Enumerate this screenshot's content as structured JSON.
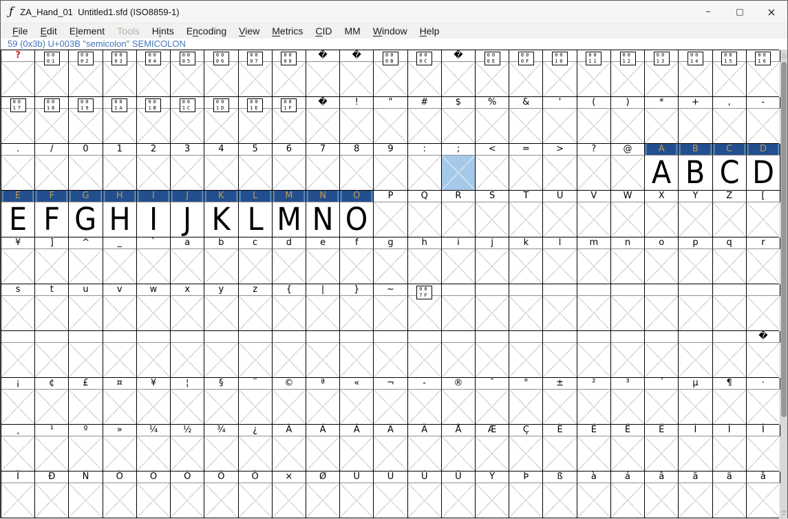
{
  "window": {
    "icon": "ƒ",
    "title": "ZA_Hand_01  Untitled1.sfd (ISO8859-1)",
    "controls": {
      "minimize": "–",
      "maximize": "□",
      "close": "×"
    }
  },
  "menu": {
    "items": [
      {
        "label": "File",
        "mnemonic": 0,
        "enabled": true
      },
      {
        "label": "Edit",
        "mnemonic": 0,
        "enabled": true
      },
      {
        "label": "Element",
        "mnemonic": 1,
        "enabled": true
      },
      {
        "label": "Tools",
        "mnemonic": -1,
        "enabled": false
      },
      {
        "label": "Hints",
        "mnemonic": 1,
        "enabled": true
      },
      {
        "label": "Encoding",
        "mnemonic": 1,
        "enabled": true
      },
      {
        "label": "View",
        "mnemonic": 0,
        "enabled": true
      },
      {
        "label": "Metrics",
        "mnemonic": 0,
        "enabled": true
      },
      {
        "label": "CID",
        "mnemonic": 0,
        "enabled": true
      },
      {
        "label": "MM",
        "mnemonic": -1,
        "enabled": true
      },
      {
        "label": "Window",
        "mnemonic": 0,
        "enabled": true
      },
      {
        "label": "Help",
        "mnemonic": 0,
        "enabled": true
      }
    ]
  },
  "status": {
    "text": "59 (0x3b) U+003B \"semicolon\" SEMICOLON"
  },
  "colors": {
    "status_text": "#4076b8",
    "selected_header_bg": "#234f8e",
    "selected_header_stripe": "#4f7db5",
    "selected_header_label": "#c19a55",
    "selected_cell_bg": "#a7c9e9",
    "missing_label": "#d42222",
    "empty_cross": "#d2d2d2"
  },
  "grid": {
    "columns": 23,
    "replacement_char": "�",
    "missing_char": "?",
    "cell_types": {
      "c": "char-label",
      "h": "hex-control-box",
      "r": "replacement-char",
      "b": "blank-label",
      "q": "red-question",
      "s": "selected-char-cell",
      "g": "selected-glyph-drawn"
    },
    "rows": [
      [
        "q",
        "h:0001",
        "h:0002",
        "h:0003",
        "h:0004",
        "h:0005",
        "h:0006",
        "h:0007",
        "h:0008",
        "r",
        "r",
        "h:000B",
        "h:000C",
        "r",
        "h:000E",
        "h:000F",
        "h:0010",
        "h:0011",
        "h:0012",
        "h:0013",
        "h:0014",
        "h:0015",
        "h:0016"
      ],
      [
        "h:0017",
        "h:0018",
        "h:0019",
        "h:001A",
        "h:001B",
        "h:001C",
        "h:001D",
        "h:001E",
        "h:001F",
        "r",
        "c:!",
        "c:\"",
        "c:#",
        "c:$",
        "c:%",
        "c:&",
        "c:'",
        "c:(",
        "c:)",
        "c:*",
        "c:+",
        "c:,",
        "c:-"
      ],
      [
        "c:.",
        "c:/",
        "c:0",
        "c:1",
        "c:2",
        "c:3",
        "c:4",
        "c:5",
        "c:6",
        "c:7",
        "c:8",
        "c:9",
        "c::",
        "s:;",
        "c:<",
        "c:=",
        "c:>",
        "c:?",
        "c:@",
        "g:A",
        "g:B",
        "g:C",
        "g:D"
      ],
      [
        "g:E",
        "g:F",
        "g:G",
        "g:H",
        "g:I",
        "g:J",
        "g:K",
        "g:L",
        "g:M",
        "g:N",
        "g:O",
        "c:P",
        "c:Q",
        "c:R",
        "c:S",
        "c:T",
        "c:U",
        "c:V",
        "c:W",
        "c:X",
        "c:Y",
        "c:Z",
        "c:["
      ],
      [
        "c:¥",
        "c:]",
        "c:^",
        "c:_",
        "c:`",
        "c:a",
        "c:b",
        "c:c",
        "c:d",
        "c:e",
        "c:f",
        "c:g",
        "c:h",
        "c:i",
        "c:j",
        "c:k",
        "c:l",
        "c:m",
        "c:n",
        "c:o",
        "c:p",
        "c:q",
        "c:r"
      ],
      [
        "c:s",
        "c:t",
        "c:u",
        "c:v",
        "c:w",
        "c:x",
        "c:y",
        "c:z",
        "c:{",
        "c:|",
        "c:}",
        "c:~",
        "h:007F",
        "b",
        "b",
        "b",
        "b",
        "b",
        "b",
        "b",
        "b",
        "b",
        "b"
      ],
      [
        "b",
        "b",
        "b",
        "b",
        "b",
        "b",
        "b",
        "b",
        "b",
        "b",
        "b",
        "b",
        "b",
        "b",
        "b",
        "b",
        "b",
        "b",
        "b",
        "b",
        "b",
        "b",
        "r"
      ],
      [
        "c:¡",
        "c:¢",
        "c:£",
        "c:¤",
        "c:¥",
        "c:¦",
        "c:§",
        "c:¨",
        "c:©",
        "c:ª",
        "c:«",
        "c:¬",
        "c:-",
        "c:®",
        "c:¯",
        "c:°",
        "c:±",
        "c:²",
        "c:³",
        "c:´",
        "c:µ",
        "c:¶",
        "c:·"
      ],
      [
        "c:¸",
        "c:¹",
        "c:º",
        "c:»",
        "c:¼",
        "c:½",
        "c:¾",
        "c:¿",
        "c:À",
        "c:Á",
        "c:Â",
        "c:Ã",
        "c:Ä",
        "c:Å",
        "c:Æ",
        "c:Ç",
        "c:È",
        "c:É",
        "c:Ê",
        "c:Ë",
        "c:Ì",
        "c:Í",
        "c:Î"
      ],
      [
        "c:Ï",
        "c:Ð",
        "c:Ñ",
        "c:Ò",
        "c:Ó",
        "c:Ô",
        "c:Õ",
        "c:Ö",
        "c:×",
        "c:Ø",
        "c:Ù",
        "c:Ú",
        "c:Û",
        "c:Ü",
        "c:Ý",
        "c:Þ",
        "c:ß",
        "c:à",
        "c:á",
        "c:â",
        "c:ã",
        "c:ä",
        "c:å"
      ]
    ]
  },
  "scrollbar": {
    "up_arrow": "△",
    "down_arrow": "▽"
  }
}
